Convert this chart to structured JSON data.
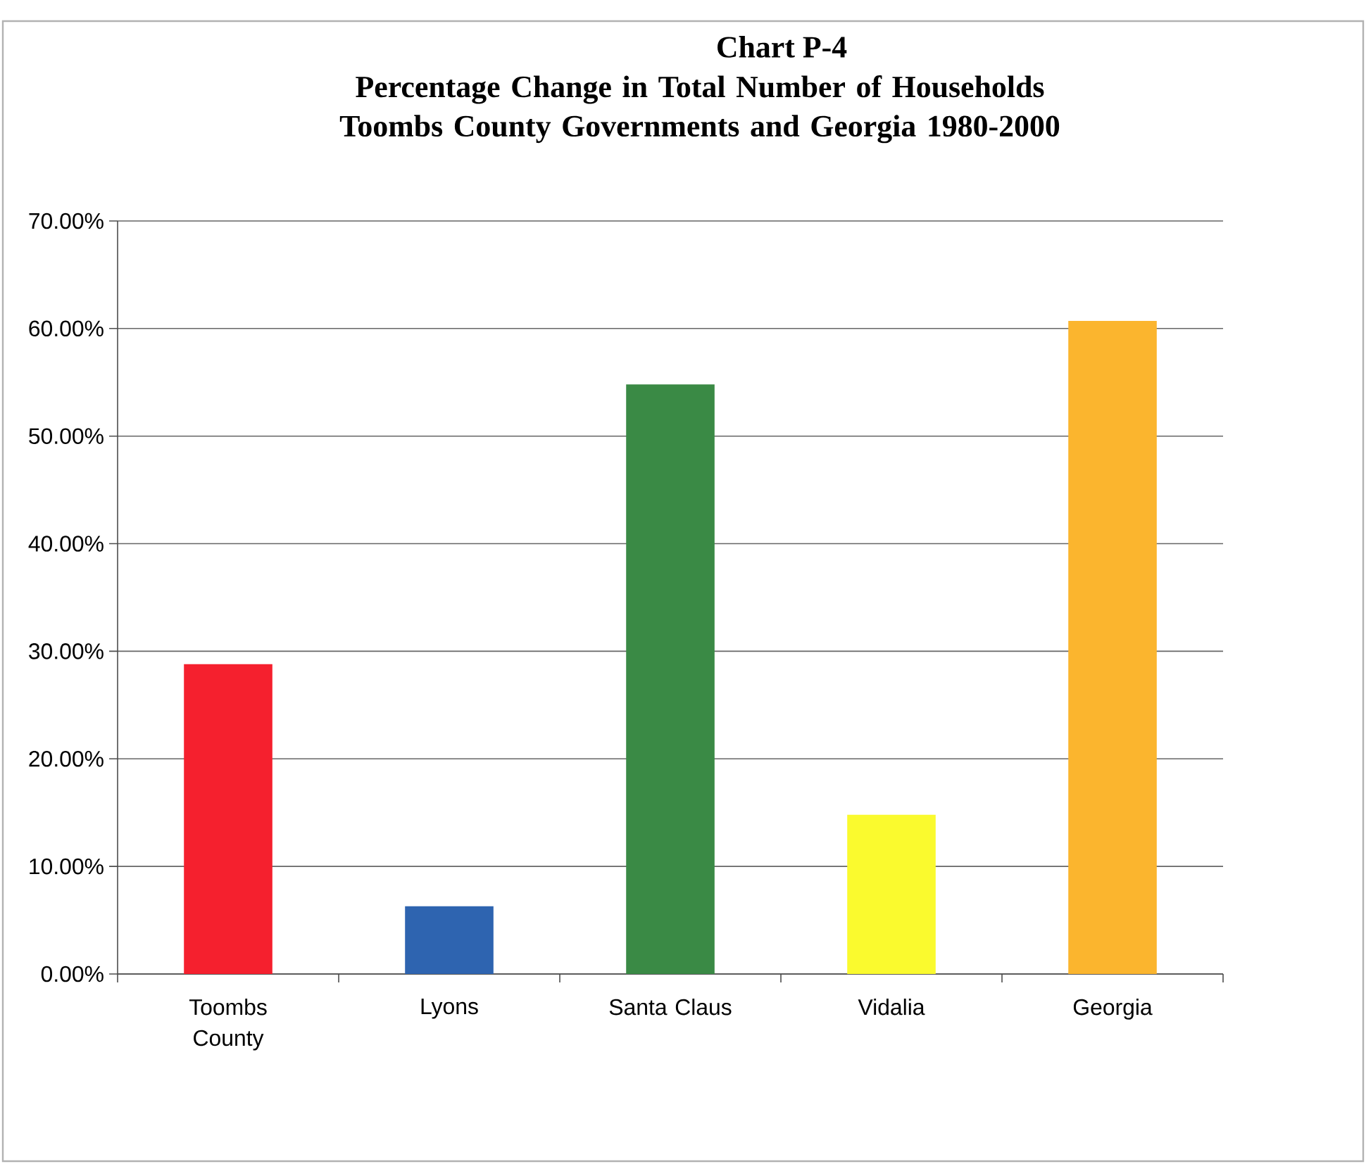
{
  "chart_data": {
    "type": "bar",
    "title": "Chart P-4",
    "subtitle": "Percentage Change in Total Number of Households Toombs County Governments and Georgia 1980-2000",
    "categories": [
      "Toombs County",
      "Lyons",
      "Santa Claus",
      "Vidalia",
      "Georgia"
    ],
    "values": [
      28.8,
      6.3,
      54.8,
      14.8,
      60.7
    ],
    "colors": [
      "#f5202e",
      "#2e64b0",
      "#3a8a45",
      "#fafa2e",
      "#fbb52e"
    ],
    "ylim": [
      0,
      70
    ],
    "yticks": [
      {
        "value": 0,
        "label": "0.00%"
      },
      {
        "value": 10,
        "label": "10.00%"
      },
      {
        "value": 20,
        "label": "20.00%"
      },
      {
        "value": 30,
        "label": "30.00%"
      },
      {
        "value": 40,
        "label": "40.00%"
      },
      {
        "value": 50,
        "label": "50.00%"
      },
      {
        "value": 60,
        "label": "60.00%"
      },
      {
        "value": 70,
        "label": "70.00%"
      }
    ],
    "grid": "y"
  }
}
